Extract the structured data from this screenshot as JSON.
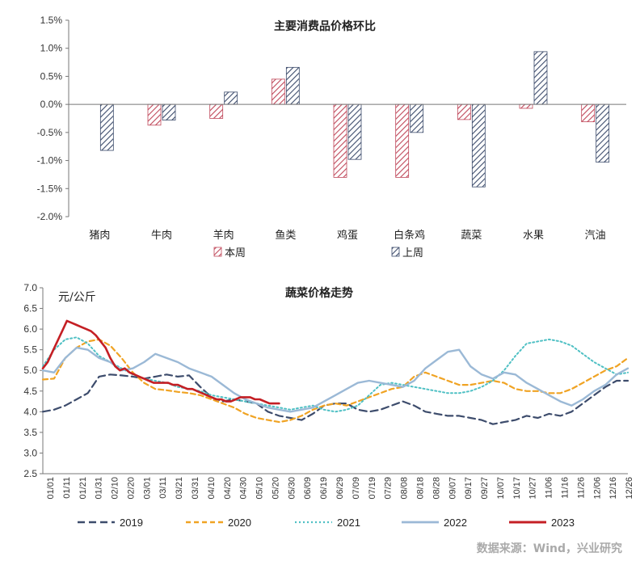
{
  "chart_data": [
    {
      "type": "bar",
      "title": "主要消费品价格环比",
      "categories": [
        "猪肉",
        "牛肉",
        "羊肉",
        "鱼类",
        "鸡蛋",
        "白条鸡",
        "蔬菜",
        "水果",
        "汽油"
      ],
      "series": [
        {
          "name": "本周",
          "values": [
            0.0,
            -0.37,
            -0.25,
            0.45,
            -1.3,
            -1.3,
            -0.27,
            -0.07,
            -0.31
          ]
        },
        {
          "name": "上周",
          "values": [
            -0.82,
            -0.28,
            0.22,
            0.66,
            -0.98,
            -0.5,
            -1.47,
            0.94,
            -1.03
          ]
        }
      ],
      "yticks": [
        "1.5%",
        "1.0%",
        "0.5%",
        "0.0%",
        "-0.5%",
        "-1.0%",
        "-1.5%",
        "-2.0%"
      ],
      "ylim": [
        -2.0,
        1.5
      ],
      "xlabel": "",
      "ylabel": "",
      "colors": {
        "本周": "#c0485a",
        "上周": "#3d4c6c"
      },
      "legend": "bottom",
      "grid": false
    },
    {
      "type": "line",
      "title": "蔬菜价格走势",
      "ylabel": "元/公斤",
      "xlabel": "",
      "ylim": [
        2.5,
        7.0
      ],
      "yticks": [
        "7.0",
        "6.5",
        "6.0",
        "5.5",
        "5.0",
        "4.5",
        "4.0",
        "3.5",
        "3.0",
        "2.5"
      ],
      "xticks": [
        "01/01",
        "01/11",
        "01/21",
        "01/31",
        "02/10",
        "02/20",
        "03/01",
        "03/11",
        "03/21",
        "03/31",
        "04/10",
        "04/20",
        "04/30",
        "05/10",
        "05/20",
        "05/30",
        "06/09",
        "06/19",
        "06/29",
        "07/09",
        "07/19",
        "07/29",
        "08/08",
        "08/18",
        "08/28",
        "09/07",
        "09/17",
        "09/27",
        "10/07",
        "10/17",
        "10/27",
        "11/06",
        "11/16",
        "11/26",
        "12/06",
        "12/16",
        "12/26"
      ],
      "x_note": "x values are day-of-year (1 = 01/01)",
      "legend": "bottom",
      "grid": false,
      "series": [
        {
          "name": "2019",
          "color": "#3d4c6c",
          "dash": "9,5",
          "width": 2.2,
          "x": [
            1,
            8,
            15,
            22,
            29,
            36,
            43,
            50,
            57,
            64,
            71,
            78,
            85,
            92,
            99,
            106,
            113,
            120,
            127,
            134,
            141,
            148,
            155,
            162,
            169,
            176,
            183,
            190,
            197,
            204,
            211,
            218,
            225,
            232,
            239,
            246,
            253,
            260,
            267,
            274,
            281,
            288,
            295,
            302,
            309,
            316,
            323,
            330,
            337,
            344,
            351,
            358,
            365
          ],
          "y": [
            4.0,
            4.05,
            4.15,
            4.3,
            4.45,
            4.85,
            4.9,
            4.88,
            4.85,
            4.8,
            4.85,
            4.9,
            4.85,
            4.88,
            4.6,
            4.35,
            4.25,
            4.3,
            4.25,
            4.2,
            4.0,
            3.9,
            3.85,
            3.8,
            3.95,
            4.15,
            4.2,
            4.2,
            4.05,
            4.0,
            4.05,
            4.15,
            4.25,
            4.15,
            4.0,
            3.95,
            3.9,
            3.9,
            3.85,
            3.8,
            3.7,
            3.75,
            3.8,
            3.9,
            3.85,
            3.95,
            3.9,
            4.0,
            4.2,
            4.4,
            4.6,
            4.75,
            4.75
          ]
        },
        {
          "name": "2020",
          "color": "#f0a323",
          "dash": "6,4",
          "width": 2.2,
          "x": [
            1,
            8,
            15,
            22,
            29,
            36,
            43,
            50,
            57,
            64,
            71,
            78,
            85,
            92,
            99,
            106,
            113,
            120,
            127,
            134,
            141,
            148,
            155,
            162,
            169,
            176,
            183,
            190,
            197,
            204,
            211,
            218,
            225,
            232,
            239,
            246,
            253,
            260,
            267,
            274,
            281,
            288,
            295,
            302,
            309,
            316,
            323,
            330,
            337,
            344,
            351,
            358,
            365
          ],
          "y": [
            4.78,
            4.8,
            5.3,
            5.55,
            5.7,
            5.75,
            5.6,
            5.3,
            4.95,
            4.7,
            4.55,
            4.52,
            4.48,
            4.45,
            4.4,
            4.3,
            4.2,
            4.1,
            3.95,
            3.85,
            3.8,
            3.75,
            3.8,
            3.9,
            4.05,
            4.15,
            4.2,
            4.15,
            4.25,
            4.35,
            4.45,
            4.55,
            4.6,
            4.85,
            4.95,
            4.85,
            4.75,
            4.65,
            4.65,
            4.7,
            4.75,
            4.7,
            4.55,
            4.5,
            4.5,
            4.45,
            4.45,
            4.55,
            4.7,
            4.85,
            5.0,
            5.1,
            5.3
          ]
        },
        {
          "name": "2021",
          "color": "#4fc0c4",
          "dash": "2,3",
          "width": 2,
          "x": [
            1,
            8,
            15,
            22,
            29,
            36,
            43,
            50,
            57,
            64,
            71,
            78,
            85,
            92,
            99,
            106,
            113,
            120,
            127,
            134,
            141,
            148,
            155,
            162,
            169,
            176,
            183,
            190,
            197,
            204,
            211,
            218,
            225,
            232,
            239,
            246,
            253,
            260,
            267,
            274,
            281,
            288,
            295,
            302,
            309,
            316,
            323,
            330,
            337,
            344,
            351,
            358,
            365
          ],
          "y": [
            5.1,
            5.5,
            5.75,
            5.8,
            5.65,
            5.35,
            5.2,
            5.05,
            4.9,
            4.8,
            4.75,
            4.7,
            4.6,
            4.55,
            4.5,
            4.4,
            4.35,
            4.3,
            4.25,
            4.2,
            4.15,
            4.1,
            4.05,
            4.1,
            4.15,
            4.05,
            4.0,
            4.05,
            4.15,
            4.4,
            4.65,
            4.7,
            4.65,
            4.6,
            4.55,
            4.5,
            4.45,
            4.45,
            4.5,
            4.6,
            4.75,
            5.0,
            5.35,
            5.65,
            5.7,
            5.75,
            5.7,
            5.6,
            5.4,
            5.2,
            5.05,
            4.9,
            4.95
          ]
        },
        {
          "name": "2022",
          "color": "#9bb9d6",
          "dash": "",
          "width": 2.4,
          "x": [
            1,
            8,
            15,
            22,
            29,
            36,
            43,
            50,
            57,
            64,
            71,
            78,
            85,
            92,
            99,
            106,
            113,
            120,
            127,
            134,
            141,
            148,
            155,
            162,
            169,
            176,
            183,
            190,
            197,
            204,
            211,
            218,
            225,
            232,
            239,
            246,
            253,
            260,
            267,
            274,
            281,
            288,
            295,
            302,
            309,
            316,
            323,
            330,
            337,
            344,
            351,
            358,
            365
          ],
          "y": [
            5.0,
            4.95,
            5.3,
            5.55,
            5.5,
            5.3,
            5.2,
            5.0,
            5.05,
            5.2,
            5.4,
            5.3,
            5.2,
            5.05,
            4.95,
            4.85,
            4.65,
            4.45,
            4.3,
            4.2,
            4.1,
            4.05,
            4.0,
            4.05,
            4.1,
            4.25,
            4.4,
            4.55,
            4.7,
            4.75,
            4.7,
            4.65,
            4.6,
            4.75,
            5.05,
            5.25,
            5.45,
            5.5,
            5.1,
            4.9,
            4.8,
            4.95,
            4.9,
            4.7,
            4.55,
            4.4,
            4.25,
            4.15,
            4.3,
            4.5,
            4.65,
            4.9,
            5.05
          ]
        },
        {
          "name": "2023",
          "color": "#c41f24",
          "dash": "",
          "width": 2.6,
          "x": [
            1,
            4,
            7,
            10,
            13,
            16,
            19,
            22,
            25,
            28,
            31,
            34,
            37,
            40,
            43,
            46,
            49,
            52,
            55,
            58,
            61,
            64,
            67,
            70,
            73,
            76,
            79,
            82,
            85,
            88,
            91,
            94,
            97,
            100,
            103,
            106,
            109,
            112,
            115,
            118,
            121,
            124,
            127,
            130,
            133,
            136,
            139,
            142,
            145,
            148
          ],
          "y": [
            5.05,
            5.2,
            5.45,
            5.7,
            5.95,
            6.2,
            6.15,
            6.1,
            6.05,
            6.0,
            5.95,
            5.85,
            5.7,
            5.55,
            5.3,
            5.1,
            5.0,
            5.05,
            4.95,
            4.9,
            4.85,
            4.8,
            4.75,
            4.7,
            4.7,
            4.7,
            4.7,
            4.65,
            4.65,
            4.6,
            4.55,
            4.55,
            4.5,
            4.45,
            4.4,
            4.35,
            4.3,
            4.3,
            4.25,
            4.25,
            4.3,
            4.35,
            4.35,
            4.35,
            4.3,
            4.3,
            4.25,
            4.2,
            4.2,
            4.2
          ]
        }
      ]
    }
  ],
  "legend_top": {
    "this_week": "本周",
    "last_week": "上周"
  },
  "source": "数据来源：Wind，兴业研究"
}
